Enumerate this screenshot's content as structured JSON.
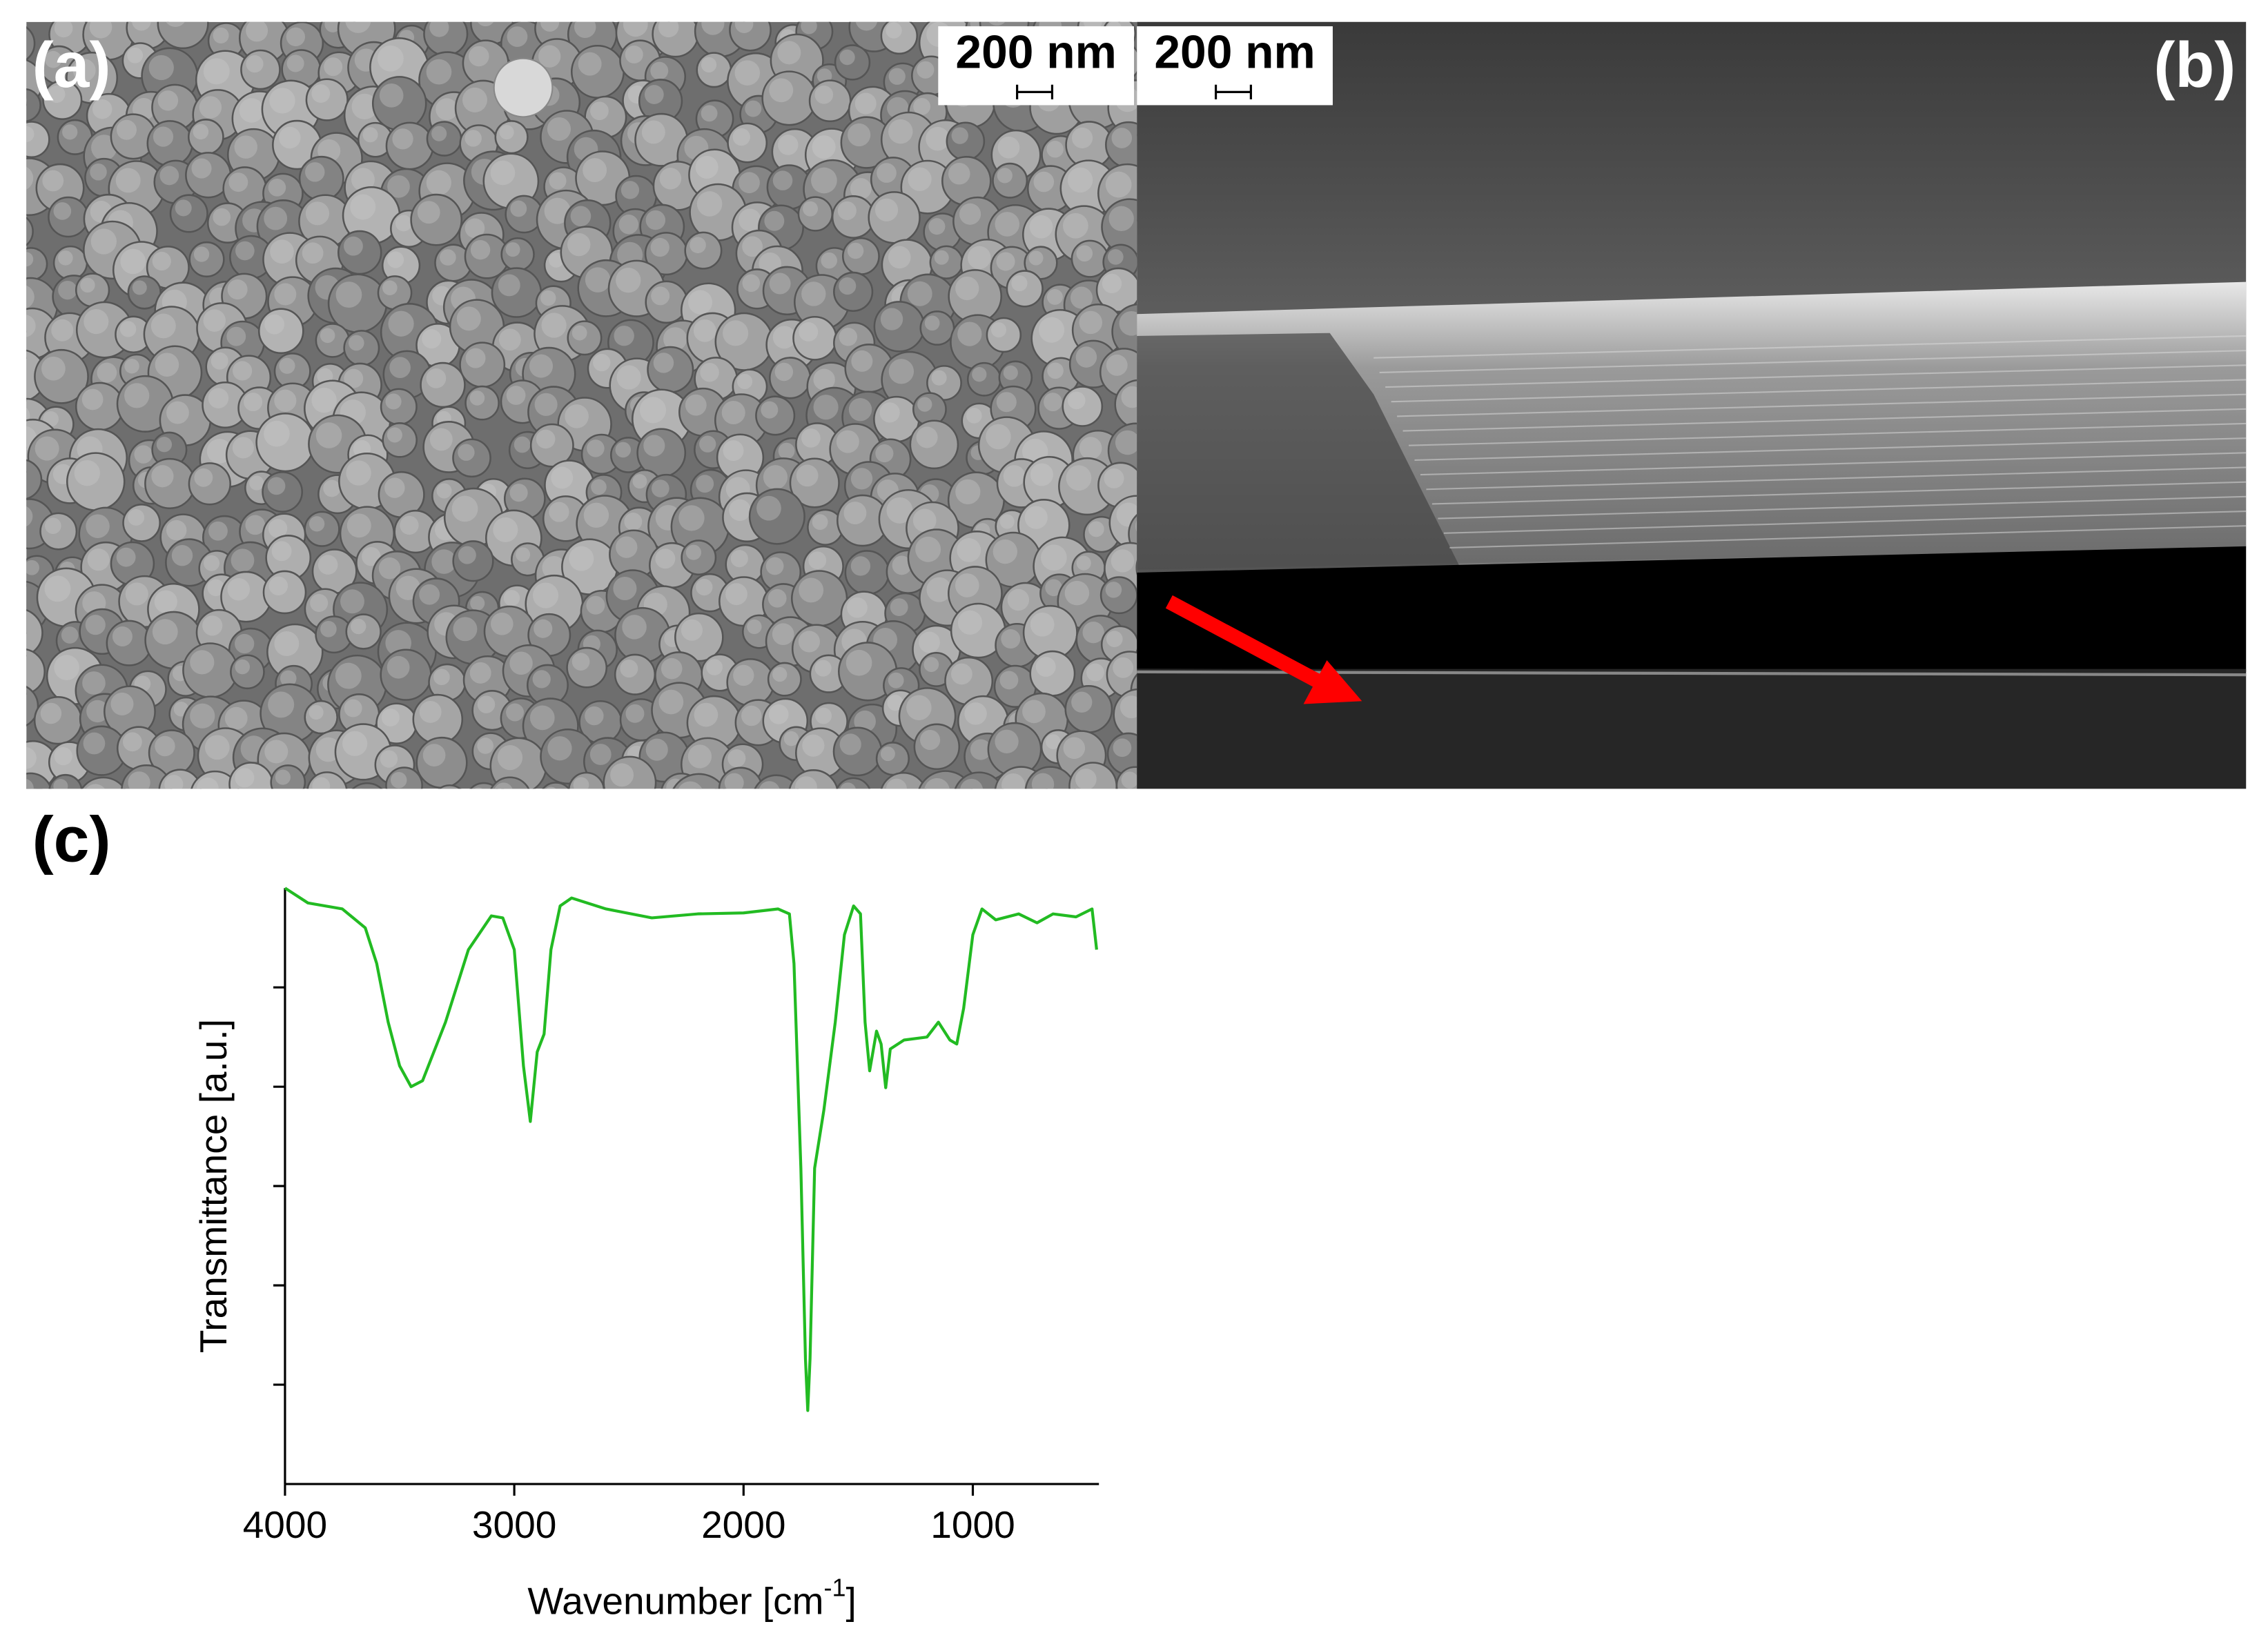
{
  "panels": {
    "a": {
      "label": "(a)",
      "scale_bar": "200 nm"
    },
    "b": {
      "label": "(b)",
      "scale_bar": "200 nm"
    },
    "c": {
      "label": "(c)"
    }
  },
  "chart_data": {
    "type": "line",
    "xlabel_parts": [
      "Wavenumber [cm",
      "-1",
      "]"
    ],
    "ylabel": "Transmittance [a.u.]",
    "xlim": [
      4000,
      450
    ],
    "xticks": [
      4000,
      3000,
      2000,
      1000
    ],
    "ylim": [
      0,
      6
    ],
    "yticks": [
      1,
      2,
      3,
      4,
      5
    ],
    "ytick_labels": false,
    "grid": false,
    "series": [
      {
        "color": "#22bb22",
        "x": [
          4000,
          3900,
          3750,
          3650,
          3600,
          3550,
          3500,
          3450,
          3400,
          3300,
          3200,
          3100,
          3050,
          3000,
          2960,
          2930,
          2900,
          2870,
          2840,
          2800,
          2750,
          2600,
          2400,
          2200,
          2000,
          1850,
          1800,
          1780,
          1750,
          1730,
          1720,
          1710,
          1690,
          1650,
          1600,
          1560,
          1520,
          1490,
          1470,
          1450,
          1420,
          1400,
          1380,
          1360,
          1300,
          1200,
          1150,
          1100,
          1070,
          1040,
          1000,
          960,
          900,
          800,
          720,
          650,
          550,
          480,
          460
        ],
        "values": [
          6.0,
          5.85,
          5.79,
          5.6,
          5.24,
          4.65,
          4.21,
          4.0,
          4.06,
          4.65,
          5.38,
          5.72,
          5.7,
          5.38,
          4.21,
          3.65,
          4.35,
          4.53,
          5.38,
          5.82,
          5.9,
          5.79,
          5.7,
          5.74,
          5.75,
          5.79,
          5.74,
          5.24,
          3.18,
          1.26,
          0.74,
          1.26,
          3.18,
          3.76,
          4.65,
          5.53,
          5.82,
          5.74,
          4.65,
          4.16,
          4.56,
          4.43,
          3.99,
          4.38,
          4.47,
          4.5,
          4.65,
          4.47,
          4.43,
          4.79,
          5.53,
          5.79,
          5.68,
          5.74,
          5.65,
          5.74,
          5.71,
          5.79,
          5.38
        ]
      }
    ]
  }
}
